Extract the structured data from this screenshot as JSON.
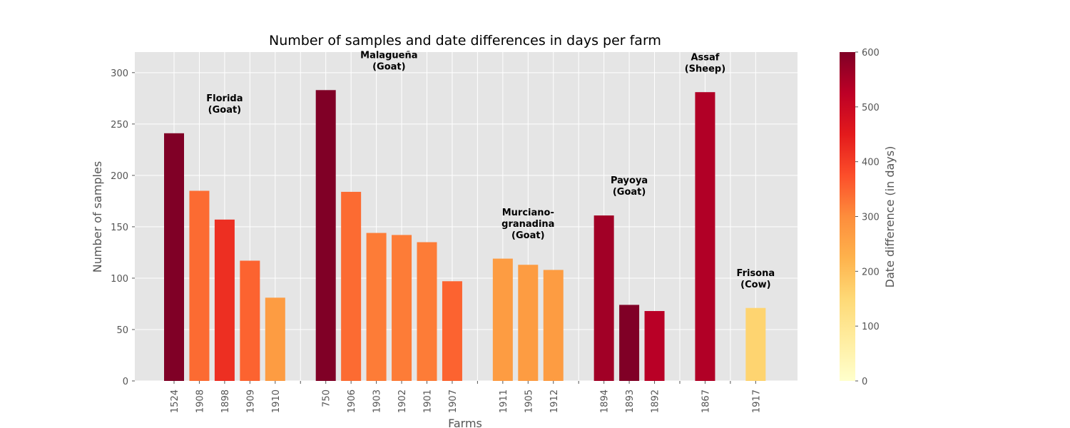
{
  "chart_data": {
    "type": "bar",
    "title": "Number of samples and date differences in days per farm",
    "xlabel": "Farms",
    "ylabel": "Number of samples",
    "ylim": [
      0,
      320
    ],
    "yticks": [
      0,
      50,
      100,
      150,
      200,
      250,
      300
    ],
    "grid": true,
    "categories": [
      "1524",
      "1908",
      "1898",
      "1909",
      "1910",
      "750",
      "1906",
      "1903",
      "1902",
      "1901",
      "1907",
      "1911",
      "1905",
      "1912",
      "1894",
      "1893",
      "1892",
      "1867",
      "1917"
    ],
    "values": [
      241,
      185,
      157,
      117,
      81,
      283,
      184,
      144,
      142,
      135,
      97,
      119,
      113,
      108,
      161,
      74,
      68,
      281,
      71
    ],
    "date_difference_days": [
      600,
      340,
      420,
      350,
      270,
      600,
      340,
      320,
      320,
      320,
      350,
      270,
      270,
      270,
      560,
      600,
      530,
      540,
      160
    ],
    "groups": [
      {
        "label_lines": [
          "Florida",
          "(Goat)"
        ],
        "members": [
          "1524",
          "1908",
          "1898",
          "1909",
          "1910"
        ]
      },
      {
        "label_lines": [
          "Malagueña",
          "(Goat)"
        ],
        "members": [
          "750",
          "1906",
          "1903",
          "1902",
          "1901",
          "1907"
        ]
      },
      {
        "label_lines": [
          "Murciano-",
          "granadina",
          "(Goat)"
        ],
        "members": [
          "1911",
          "1905",
          "1912"
        ]
      },
      {
        "label_lines": [
          "Payoya",
          "(Goat)"
        ],
        "members": [
          "1894",
          "1893",
          "1892"
        ]
      },
      {
        "label_lines": [
          "Assaf",
          "(Sheep)"
        ],
        "members": [
          "1867"
        ]
      },
      {
        "label_lines": [
          "Frisona",
          "(Cow)"
        ],
        "members": [
          "1917"
        ]
      }
    ],
    "colorbar": {
      "label": "Date difference (in days)",
      "range": [
        0,
        600
      ],
      "ticks": [
        0,
        100,
        200,
        300,
        400,
        500,
        600
      ],
      "colormap": "YlOrRd",
      "stops": [
        "#ffffcc",
        "#ffeda0",
        "#fed976",
        "#feb24c",
        "#fd8d3c",
        "#fc4e2a",
        "#e31a1c",
        "#bd0026",
        "#800026"
      ]
    }
  }
}
